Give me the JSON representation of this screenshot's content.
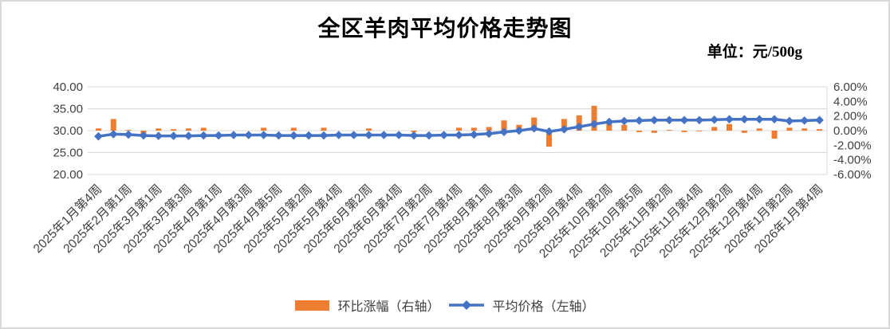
{
  "header": {
    "title": "全区羊肉平均价格走势图",
    "unit_label": "单位：元/500g"
  },
  "colors": {
    "bar": "#ED7D31",
    "line": "#4472C4",
    "gridline": "#D9D9D9",
    "tick_text": "#404040",
    "title_text": "#000000"
  },
  "chart_data": {
    "type": "bar",
    "subtype": "combo-bar-line",
    "title": "全区羊肉平均价格走势图",
    "unit": "元/500g",
    "grid": true,
    "legend_position": "bottom",
    "x_tick_labels": [
      "2025年1月第4周",
      "2025年2月第1周",
      "2025年3月第1周",
      "2025年3月第3周",
      "2025年4月第1周",
      "2025年4月第3周",
      "2025年4月第5周",
      "2025年5月第2周",
      "2025年5月第4周",
      "2025年6月第2周",
      "2025年6月第4周",
      "2025年7月第2周",
      "2025年7月第4周",
      "2025年8月第1周",
      "2025年8月第3周",
      "2025年9月第2周",
      "2025年9月第4周",
      "2025年10月第2周",
      "2025年10月第5周",
      "2025年11月第2周",
      "2025年11月第4周",
      "2025年12月第2周",
      "2025年12月第4周",
      "2026年1月第2周",
      "2026年1月第4周"
    ],
    "x_label_interval": 2,
    "point_count": 49,
    "left_axis": {
      "min": 20,
      "max": 40,
      "tick_values": [
        40,
        35,
        30,
        25,
        20
      ],
      "ticks": [
        "40.00",
        "35.00",
        "30.00",
        "25.00",
        "20.00"
      ]
    },
    "right_axis": {
      "min": -6,
      "max": 6,
      "tick_values": [
        6,
        4,
        2,
        0,
        -2,
        -4,
        -6
      ],
      "ticks": [
        "6.00%",
        "4.00%",
        "2.00%",
        "0.00%",
        "-2.00%",
        "-4.00%",
        "-6.00%"
      ]
    },
    "series": [
      {
        "name": "环比涨幅（右轴）",
        "type": "bar",
        "axis": "right",
        "color": "#ED7D31",
        "unit": "%",
        "values": [
          0.3,
          1.6,
          0.1,
          -0.5,
          0.3,
          0.2,
          0.3,
          0.4,
          0.0,
          0.0,
          0.0,
          0.4,
          0.0,
          0.4,
          0.0,
          0.4,
          0.0,
          0.0,
          0.3,
          0.0,
          0.0,
          -0.2,
          0.0,
          0.0,
          0.4,
          0.4,
          0.5,
          1.4,
          0.8,
          1.8,
          -2.2,
          1.6,
          2.1,
          3.4,
          1.2,
          0.8,
          -0.2,
          -0.3,
          0.1,
          -0.2,
          -0.1,
          0.5,
          0.9,
          -0.3,
          0.3,
          -1.1,
          0.4,
          0.3,
          0.2
        ]
      },
      {
        "name": "平均价格（左轴）",
        "type": "line",
        "axis": "left",
        "marker": "diamond",
        "color": "#4472C4",
        "unit": "元/500g",
        "values": [
          28.7,
          29.2,
          29.1,
          28.9,
          28.8,
          28.8,
          28.8,
          28.9,
          28.9,
          29.0,
          29.0,
          29.0,
          28.9,
          28.9,
          28.9,
          28.9,
          29.0,
          29.0,
          29.0,
          29.0,
          29.0,
          28.9,
          28.9,
          29.0,
          29.0,
          29.1,
          29.3,
          29.7,
          30.0,
          30.5,
          29.8,
          30.3,
          30.9,
          31.5,
          32.0,
          32.2,
          32.3,
          32.4,
          32.4,
          32.4,
          32.4,
          32.5,
          32.6,
          32.6,
          32.6,
          32.6,
          32.2,
          32.3,
          32.4
        ]
      }
    ]
  }
}
